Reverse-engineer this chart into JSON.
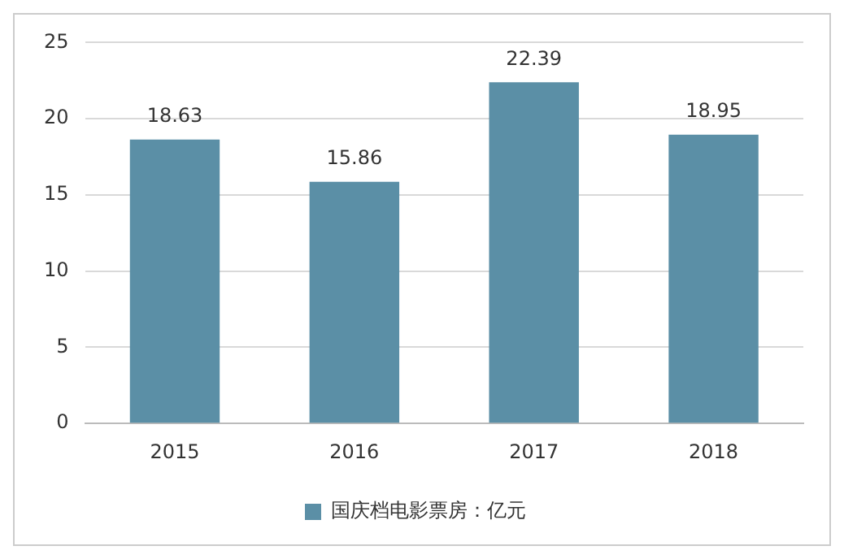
{
  "chart_data": {
    "type": "bar",
    "categories": [
      "2015",
      "2016",
      "2017",
      "2018"
    ],
    "series": [
      {
        "name": "国庆档电影票房：亿元",
        "color": "#5b8fa6",
        "values": [
          18.63,
          15.86,
          22.39,
          18.95
        ]
      }
    ],
    "ylim": [
      0,
      25
    ],
    "yticks": [
      0,
      5,
      10,
      15,
      20,
      25
    ],
    "grid": "y",
    "legend": "bottom",
    "data_labels": true
  }
}
